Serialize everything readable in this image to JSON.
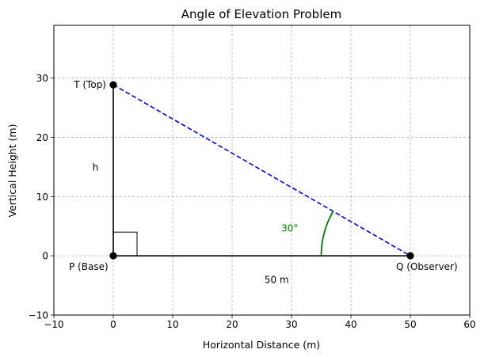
{
  "chart_data": {
    "type": "line",
    "title": "Angle of Elevation Problem",
    "xlabel": "Horizontal Distance (m)",
    "ylabel": "Vertical Height (m)",
    "xlim": [
      -10,
      60
    ],
    "ylim": [
      -10,
      38.9
    ],
    "xticks": [
      -10,
      0,
      10,
      20,
      30,
      40,
      50,
      60
    ],
    "yticks": [
      -10,
      0,
      10,
      20,
      30
    ],
    "grid": true,
    "points": [
      {
        "name": "T (Top)",
        "x": 0,
        "y": 28.87
      },
      {
        "name": "P (Base)",
        "x": 0,
        "y": 0
      },
      {
        "name": "Q (Observer)",
        "x": 50,
        "y": 0
      }
    ],
    "segments": [
      {
        "from": [
          0,
          0
        ],
        "to": [
          0,
          28.87
        ],
        "style": "solid",
        "color": "#000000"
      },
      {
        "from": [
          0,
          0
        ],
        "to": [
          50,
          0
        ],
        "style": "solid",
        "color": "#000000"
      },
      {
        "from": [
          0,
          28.87
        ],
        "to": [
          50,
          0
        ],
        "style": "dashed",
        "color": "#0000ff"
      }
    ],
    "right_angle_marker": {
      "corner": [
        0,
        0
      ],
      "size": 4
    },
    "angle": {
      "vertex": [
        50,
        0
      ],
      "radius": 15,
      "degrees": 30,
      "label": "30°",
      "color": "#008000"
    },
    "annotations": [
      {
        "text": "h",
        "x": -3,
        "y": 15
      },
      {
        "text": "50 m",
        "x": 27.5,
        "y": -4
      }
    ]
  },
  "colors": {
    "hypotenuse": "#0000ff",
    "angle": "#008000",
    "grid": "#b0b0b0",
    "points": "#000000"
  }
}
